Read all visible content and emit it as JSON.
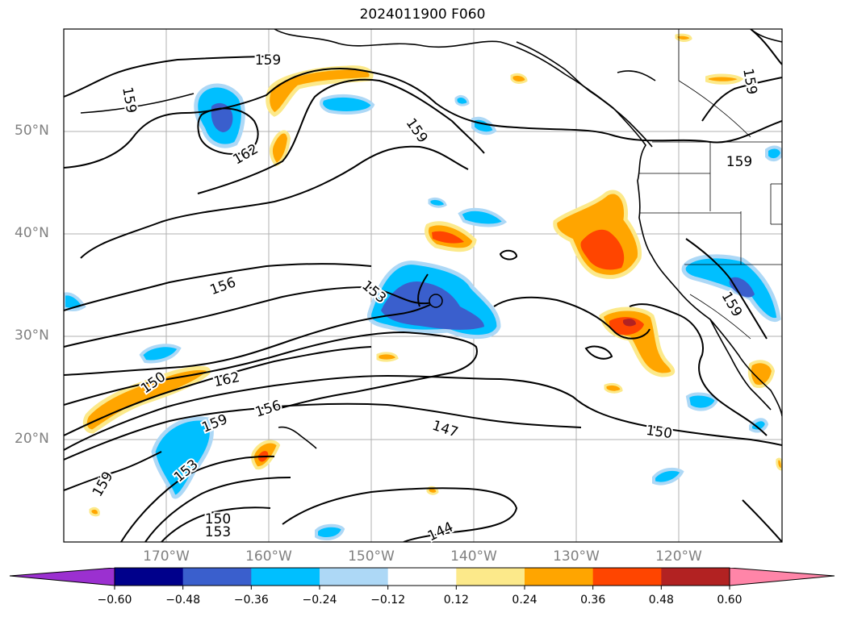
{
  "title": "2024011900 F060",
  "lat_labels": [
    "50°N",
    "40°N",
    "30°N",
    "20°N"
  ],
  "lon_labels": [
    "170°W",
    "160°W",
    "150°W",
    "140°W",
    "130°W",
    "120°W"
  ],
  "contour_labels": [
    "159",
    "159",
    "159",
    "159",
    "159",
    "162",
    "156",
    "153",
    "150",
    "162",
    "156",
    "159",
    "153",
    "159",
    "147",
    "150",
    "144",
    "150",
    "153",
    "159"
  ],
  "colorbar": {
    "ticks": [
      "−0.60",
      "−0.48",
      "−0.36",
      "−0.24",
      "−0.12",
      "0.12",
      "0.24",
      "0.36",
      "0.48",
      "0.60"
    ],
    "colors": [
      "#9b30d0",
      "#00008b",
      "#3a5fcd",
      "#00bfff",
      "#add8f6",
      "#ffffff",
      "#fce98a",
      "#ffa500",
      "#ff4500",
      "#b22222",
      "#ff85a8"
    ]
  }
}
